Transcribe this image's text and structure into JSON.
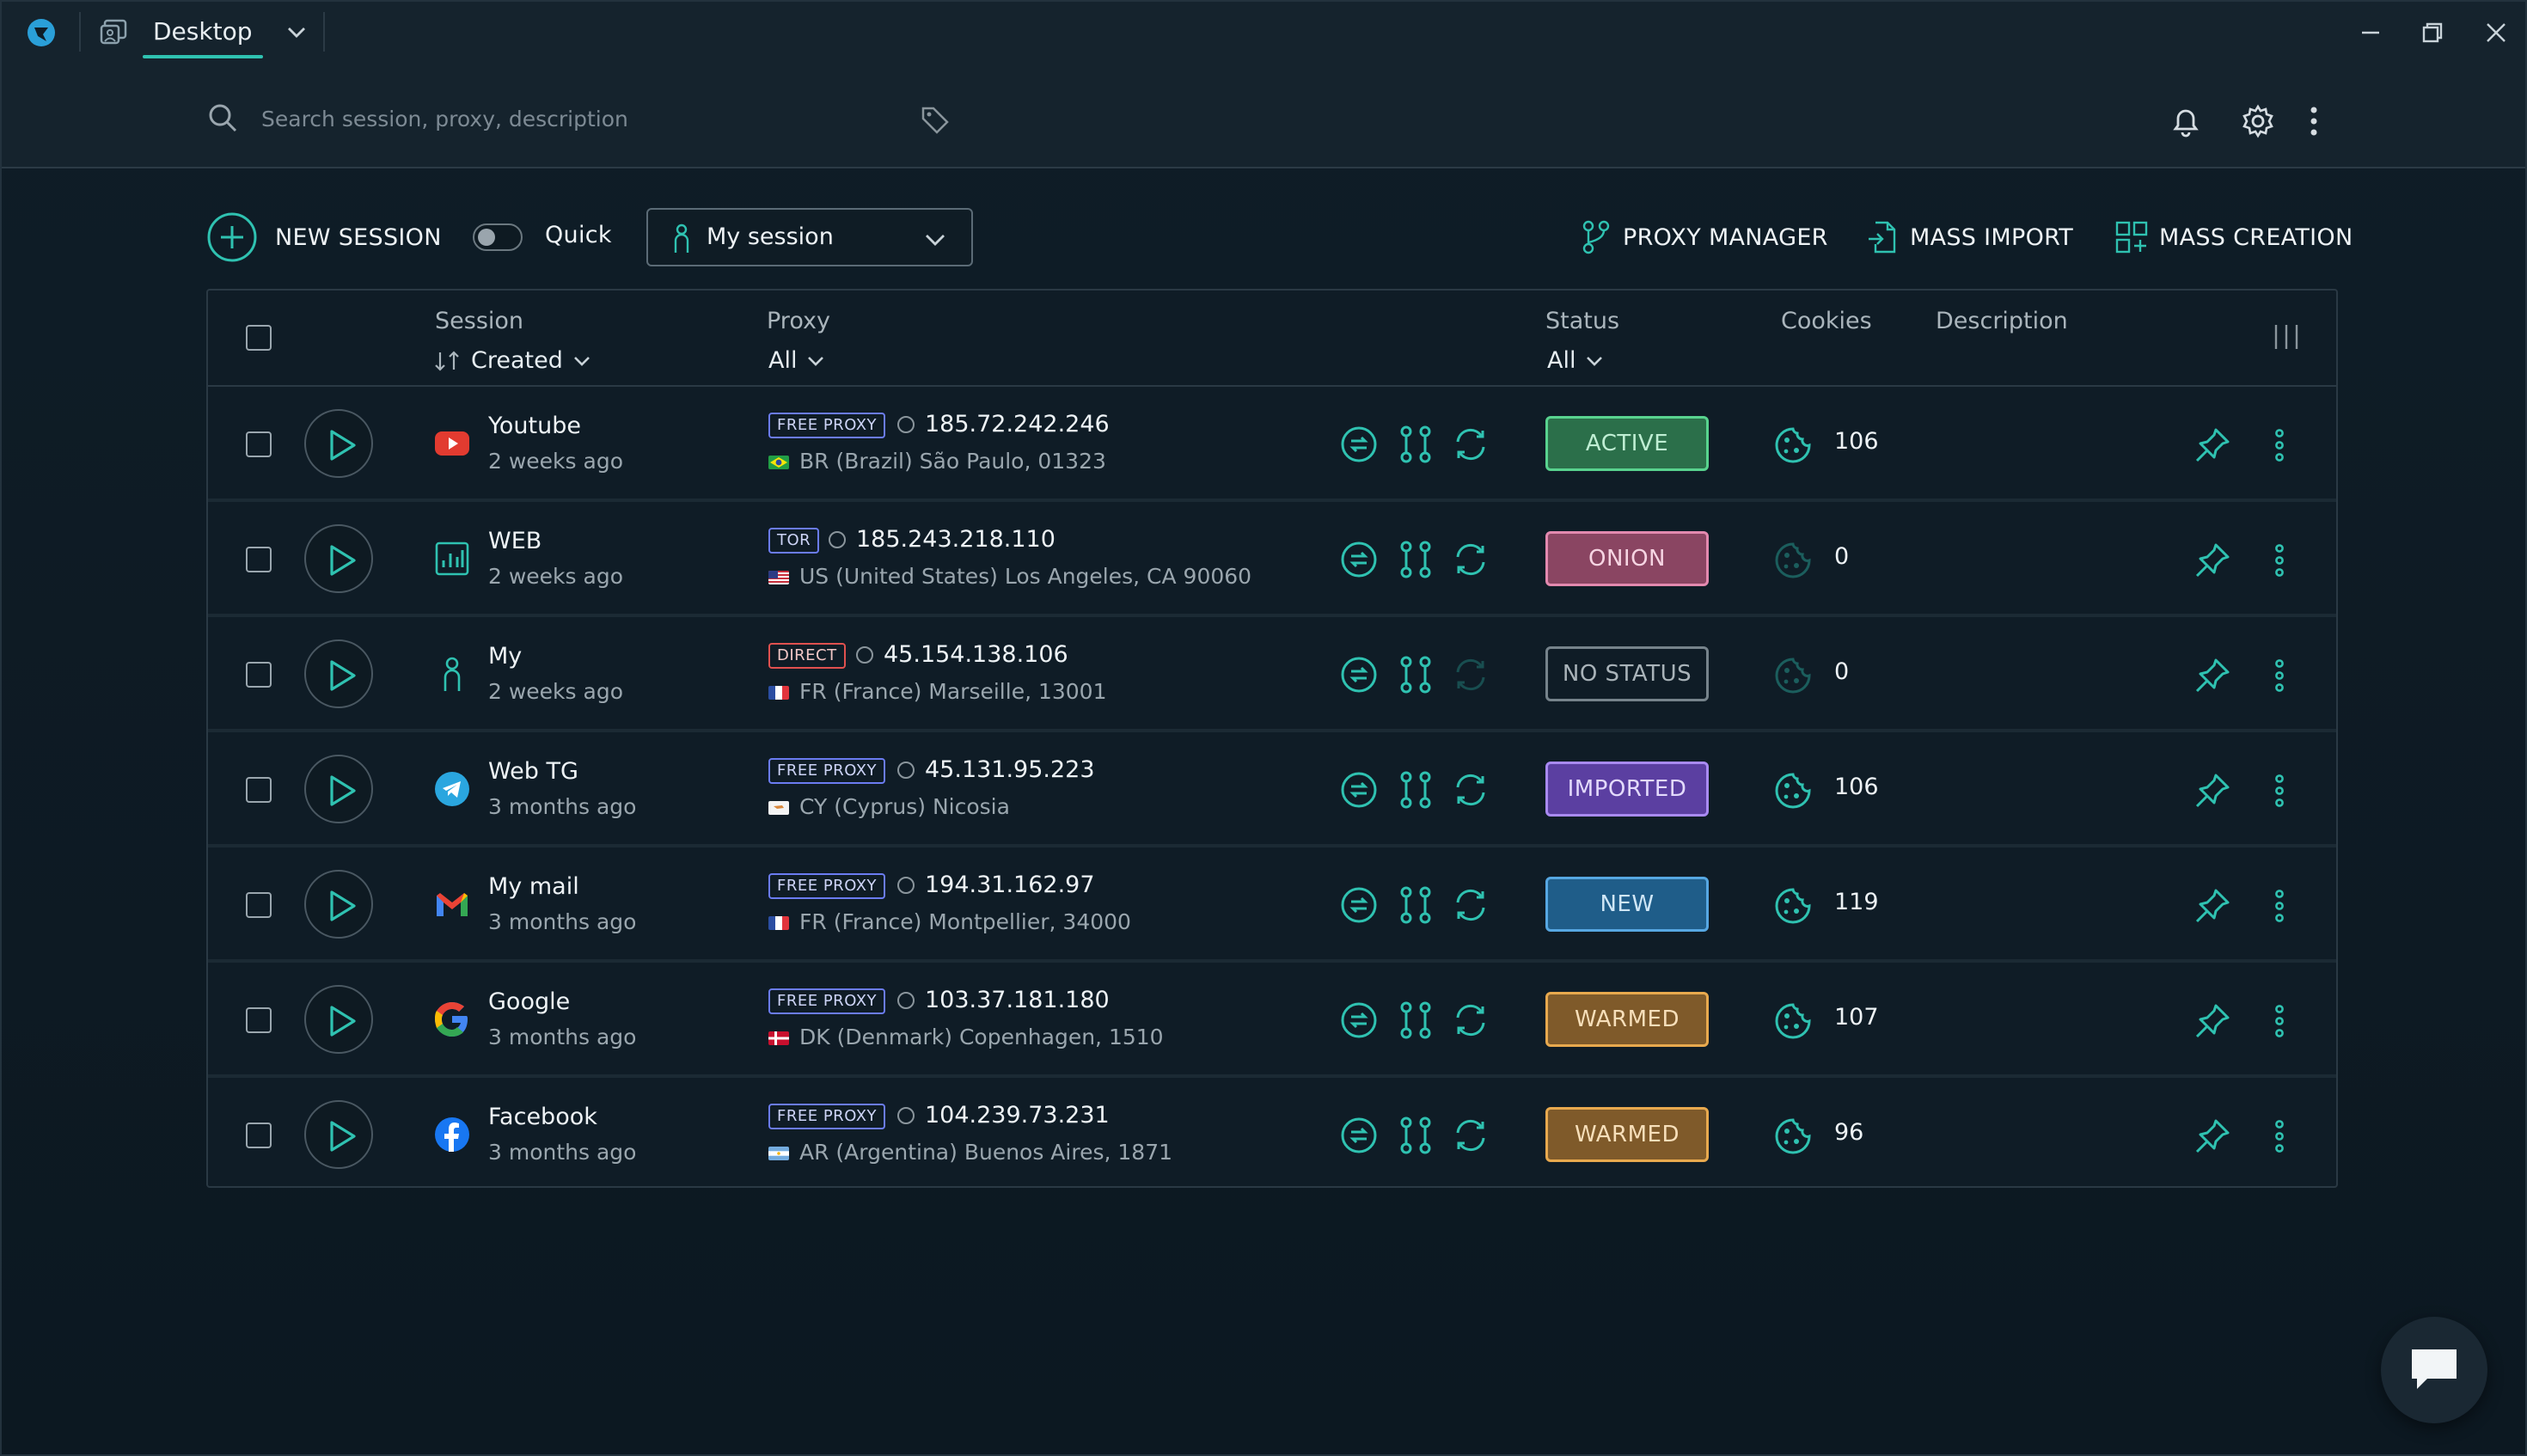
{
  "titlebar": {
    "workspace": "Desktop",
    "logo_icon": "app-logo-icon",
    "window_controls": [
      "minimize-icon",
      "restore-icon",
      "close-icon"
    ]
  },
  "search": {
    "placeholder": "Search session, proxy, description",
    "value": ""
  },
  "toolbar": {
    "new_session_label": "NEW SESSION",
    "quick_label": "Quick",
    "quick_enabled": false,
    "session_select_value": "My session",
    "proxy_manager_label": "PROXY MANAGER",
    "mass_import_label": "MASS IMPORT",
    "mass_creation_label": "MASS CREATION"
  },
  "table": {
    "headers": {
      "session": "Session",
      "session_sort": "Created",
      "proxy": "Proxy",
      "proxy_filter": "All",
      "status": "Status",
      "status_filter": "All",
      "cookies": "Cookies",
      "description": "Description"
    },
    "rows": [
      {
        "name": "Youtube",
        "created": "2 weeks ago",
        "icon": "youtube-icon",
        "proxy_type": "FREE PROXY",
        "ip": "185.72.242.246",
        "location": "BR (Brazil) São Paulo, 01323",
        "flag": "brazil-flag",
        "status": "ACTIVE",
        "cookies": "106"
      },
      {
        "name": "WEB",
        "created": "2 weeks ago",
        "icon": "chart-icon",
        "proxy_type": "TOR",
        "ip": "185.243.218.110",
        "location": "US (United States) Los Angeles, CA 90060",
        "flag": "usa-flag",
        "status": "ONION",
        "cookies": "0"
      },
      {
        "name": "My",
        "created": "2 weeks ago",
        "icon": "person-icon",
        "proxy_type": "DIRECT",
        "ip": "45.154.138.106",
        "location": "FR (France) Marseille, 13001",
        "flag": "france-flag",
        "status": "NO STATUS",
        "cookies": "0"
      },
      {
        "name": "Web TG",
        "created": "3 months ago",
        "icon": "telegram-icon",
        "proxy_type": "FREE PROXY",
        "ip": "45.131.95.223",
        "location": "CY (Cyprus) Nicosia",
        "flag": "cyprus-flag",
        "status": "IMPORTED",
        "cookies": "106"
      },
      {
        "name": "My mail",
        "created": "3 months ago",
        "icon": "gmail-icon",
        "proxy_type": "FREE PROXY",
        "ip": "194.31.162.97",
        "location": "FR (France) Montpellier, 34000",
        "flag": "france-flag",
        "status": "NEW",
        "cookies": "119"
      },
      {
        "name": "Google",
        "created": "3 months ago",
        "icon": "google-icon",
        "proxy_type": "FREE PROXY",
        "ip": "103.37.181.180",
        "location": "DK (Denmark) Copenhagen, 1510",
        "flag": "denmark-flag",
        "status": "WARMED",
        "cookies": "107"
      },
      {
        "name": "Facebook",
        "created": "3 months ago",
        "icon": "facebook-icon",
        "proxy_type": "FREE PROXY",
        "ip": "104.239.73.231",
        "location": "AR (Argentina) Buenos Aires, 1871",
        "flag": "argentina-flag",
        "status": "WARMED",
        "cookies": "96"
      }
    ]
  },
  "colors": {
    "accent": "#2fc2b1",
    "background": "#0f1c26",
    "panel": "#15232d"
  }
}
